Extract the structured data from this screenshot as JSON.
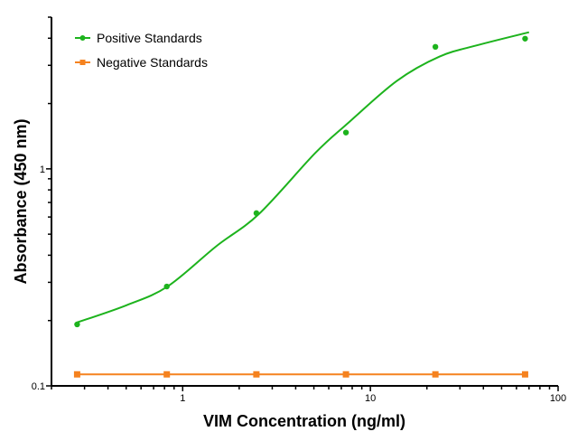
{
  "chart_data": {
    "type": "scatter",
    "title": "",
    "xlabel": "VIM Concentration (ng/ml)",
    "ylabel": "Absorbance (450 nm)",
    "xscale": "log",
    "yscale": "log",
    "xlim": [
      0.2,
      100
    ],
    "ylim": [
      0.1,
      5
    ],
    "xticks": [
      {
        "value": 1,
        "label": "1"
      },
      {
        "value": 10,
        "label": "10"
      },
      {
        "value": 100,
        "label": "100"
      }
    ],
    "yticks": [
      {
        "value": 0.1,
        "label": "0.1"
      },
      {
        "value": 1,
        "label": "1"
      }
    ],
    "grid": false,
    "legend_position": "top-left",
    "series": [
      {
        "name": "Positive Standards",
        "color": "#1db31d",
        "marker": "circle",
        "x": [
          0.274,
          0.823,
          2.47,
          7.41,
          22.2,
          66.7
        ],
        "y": [
          0.192,
          0.287,
          0.625,
          1.47,
          3.65,
          3.98
        ],
        "fit_curve": {
          "x": [
            0.274,
            0.5,
            0.83,
            1.51,
            2.55,
            5.07,
            7.57,
            13.8,
            23.3,
            37.5,
            70
          ],
          "y": [
            0.196,
            0.235,
            0.287,
            0.44,
            0.62,
            1.18,
            1.62,
            2.54,
            3.29,
            3.72,
            4.26
          ]
        }
      },
      {
        "name": "Negative Standards",
        "color": "#f5821f",
        "marker": "square",
        "x": [
          0.274,
          0.823,
          2.47,
          7.41,
          22.2,
          66.7
        ],
        "y": [
          0.113,
          0.113,
          0.113,
          0.113,
          0.113,
          0.113
        ]
      }
    ]
  }
}
